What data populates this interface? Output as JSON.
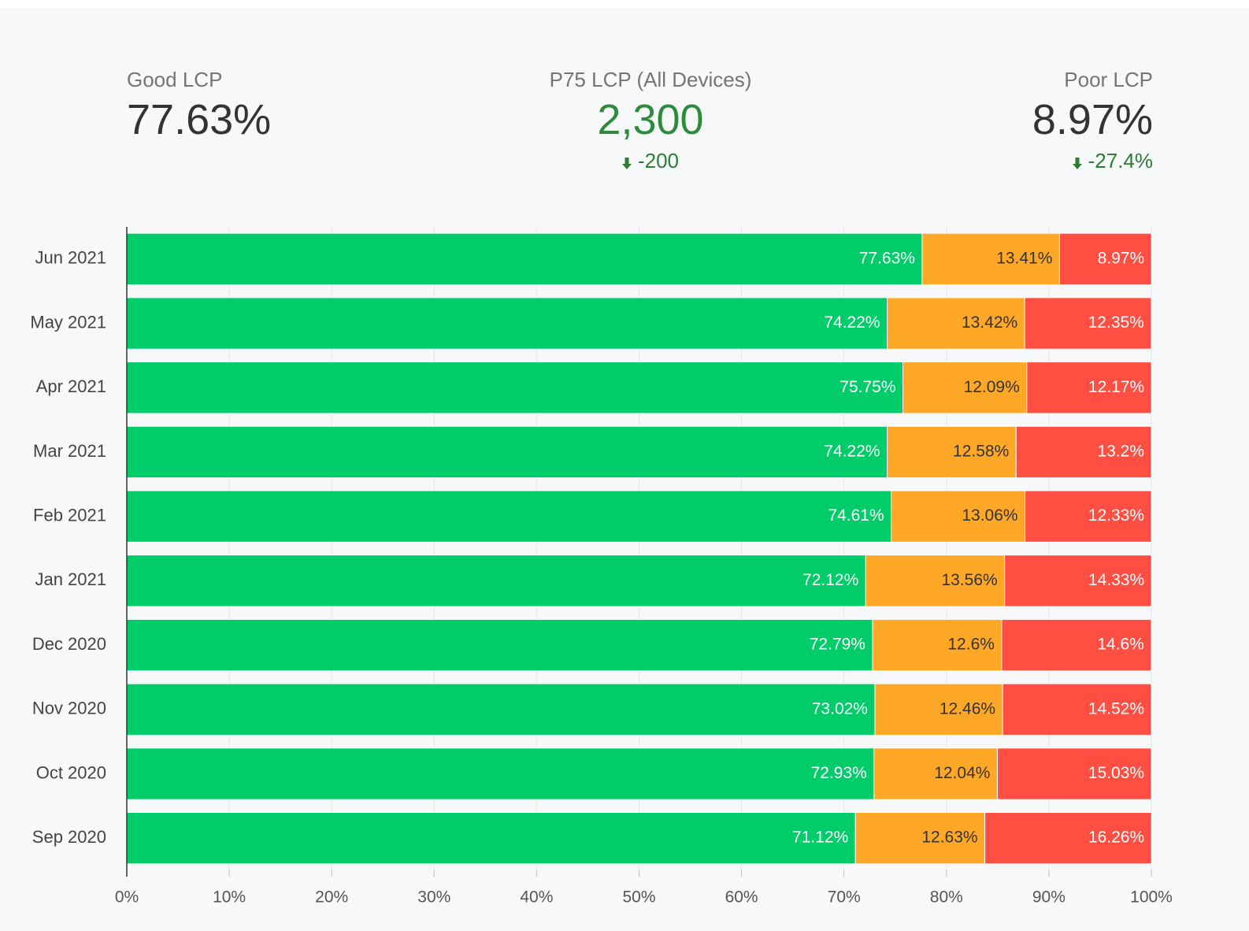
{
  "scorecards": [
    {
      "label": "Good LCP",
      "value": "77.63%"
    },
    {
      "label": "P75 LCP (All Devices)",
      "value": "2,300",
      "delta": "-200"
    },
    {
      "label": "Poor LCP",
      "value": "8.97%",
      "delta": "-27.4%"
    }
  ],
  "chart_data": {
    "type": "bar",
    "orientation": "horizontal",
    "stacked": true,
    "categories": [
      "Jun 2021",
      "May 2021",
      "Apr 2021",
      "Mar 2021",
      "Feb 2021",
      "Jan 2021",
      "Dec 2020",
      "Nov 2020",
      "Oct 2020",
      "Sep 2020"
    ],
    "series": [
      {
        "color": "#00cc6a",
        "label_color": "#ffffff",
        "values": [
          77.63,
          74.22,
          75.75,
          74.22,
          74.61,
          72.12,
          72.79,
          73.02,
          72.93,
          71.12
        ],
        "value_labels": [
          "77.63%",
          "74.22%",
          "75.75%",
          "74.22%",
          "74.61%",
          "72.12%",
          "72.79%",
          "73.02%",
          "72.93%",
          "71.12%"
        ]
      },
      {
        "color": "#ffa726",
        "label_color": "#333333",
        "values": [
          13.41,
          13.42,
          12.09,
          12.58,
          13.06,
          13.56,
          12.6,
          12.46,
          12.04,
          12.63
        ],
        "value_labels": [
          "13.41%",
          "13.42%",
          "12.09%",
          "12.58%",
          "13.06%",
          "13.56%",
          "12.6%",
          "12.46%",
          "12.04%",
          "12.63%"
        ]
      },
      {
        "color": "#ff4e42",
        "label_color": "#ffffff",
        "values": [
          8.97,
          12.35,
          12.17,
          13.2,
          12.33,
          14.33,
          14.6,
          14.52,
          15.03,
          16.26
        ],
        "value_labels": [
          "8.97%",
          "12.35%",
          "12.17%",
          "13.2%",
          "12.33%",
          "14.33%",
          "14.6%",
          "14.52%",
          "15.03%",
          "16.26%"
        ]
      }
    ],
    "xlim": [
      0,
      100
    ],
    "xticks": [
      {
        "value": 0,
        "label": "0%"
      },
      {
        "value": 10,
        "label": "10%"
      },
      {
        "value": 20,
        "label": "20%"
      },
      {
        "value": 30,
        "label": "30%"
      },
      {
        "value": 40,
        "label": "40%"
      },
      {
        "value": 50,
        "label": "50%"
      },
      {
        "value": 60,
        "label": "60%"
      },
      {
        "value": 70,
        "label": "70%"
      },
      {
        "value": 80,
        "label": "80%"
      },
      {
        "value": 90,
        "label": "90%"
      },
      {
        "value": 100,
        "label": "100%"
      }
    ],
    "grid": true
  }
}
